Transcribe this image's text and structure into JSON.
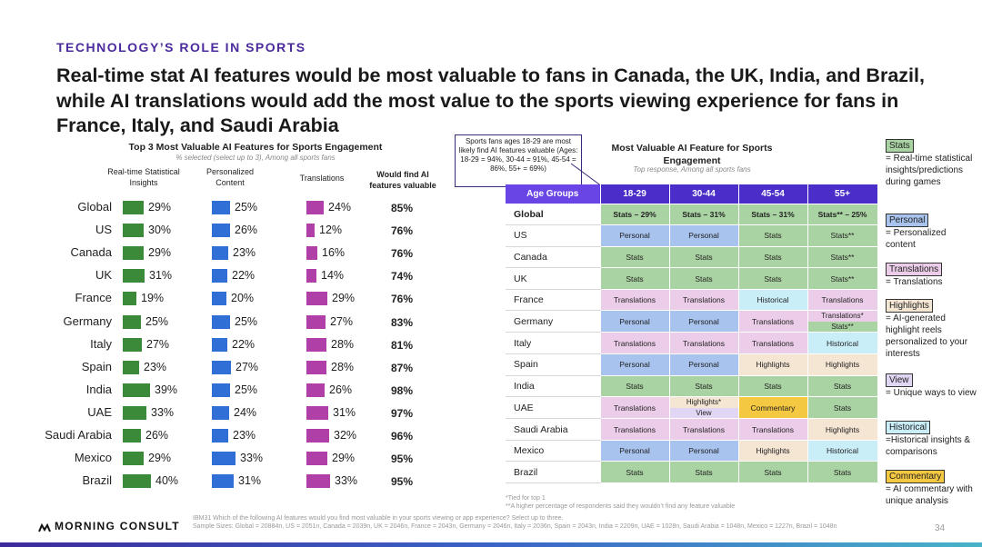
{
  "header": {
    "section_label": "TECHNOLOGY’S ROLE IN SPORTS",
    "headline": "Real-time stat AI features would be most valuable to fans in Canada, the UK, India, and Brazil, while AI translations would add the most value to the sports viewing experience for fans in France, Italy, and Saudi Arabia"
  },
  "colors": {
    "stats": "#3a8a3a",
    "personal": "#2f6fd6",
    "translations": "#b13fa8",
    "header_purple": "#4b2ec9",
    "accent": "#4b2a9e"
  },
  "chart_data": [
    {
      "type": "bar",
      "title": "Top 3 Most Valuable AI Features for Sports Engagement",
      "subtitle": "% selected (select up to 3), Among all sports fans",
      "categories": [
        "Global",
        "US",
        "Canada",
        "UK",
        "France",
        "Germany",
        "Italy",
        "Spain",
        "India",
        "UAE",
        "Saudi Arabia",
        "Mexico",
        "Brazil"
      ],
      "series": [
        {
          "name": "Real-time Statistical Insights",
          "values": [
            29,
            30,
            29,
            31,
            19,
            25,
            27,
            23,
            39,
            33,
            26,
            29,
            40
          ]
        },
        {
          "name": "Personalized Content",
          "values": [
            25,
            26,
            23,
            22,
            20,
            25,
            22,
            27,
            25,
            24,
            23,
            33,
            31
          ]
        },
        {
          "name": "Translations",
          "values": [
            24,
            12,
            16,
            14,
            29,
            27,
            28,
            28,
            26,
            31,
            32,
            29,
            33
          ]
        }
      ],
      "would_find_header": "Would find AI features valuable",
      "would_find": [
        "85%",
        "76%",
        "76%",
        "74%",
        "76%",
        "83%",
        "81%",
        "87%",
        "98%",
        "97%",
        "96%",
        "95%",
        "95%"
      ]
    },
    {
      "type": "table",
      "title": "Most Valuable AI Feature for Sports Engagement",
      "subtitle": "Top response, Among all sports fans",
      "columns": [
        "Age Groups",
        "18-29",
        "30-44",
        "45-54",
        "55+"
      ],
      "rows": [
        {
          "country": "Global",
          "cells": [
            {
              "t": "Stats – 29%",
              "c": "stats"
            },
            {
              "t": "Stats – 31%",
              "c": "stats"
            },
            {
              "t": "Stats – 31%",
              "c": "stats"
            },
            {
              "t": "Stats** – 25%",
              "c": "stats"
            }
          ]
        },
        {
          "country": "US",
          "cells": [
            {
              "t": "Personal",
              "c": "personal"
            },
            {
              "t": "Personal",
              "c": "personal"
            },
            {
              "t": "Stats",
              "c": "stats"
            },
            {
              "t": "Stats**",
              "c": "stats"
            }
          ]
        },
        {
          "country": "Canada",
          "cells": [
            {
              "t": "Stats",
              "c": "stats"
            },
            {
              "t": "Stats",
              "c": "stats"
            },
            {
              "t": "Stats",
              "c": "stats"
            },
            {
              "t": "Stats**",
              "c": "stats"
            }
          ]
        },
        {
          "country": "UK",
          "cells": [
            {
              "t": "Stats",
              "c": "stats"
            },
            {
              "t": "Stats",
              "c": "stats"
            },
            {
              "t": "Stats",
              "c": "stats"
            },
            {
              "t": "Stats**",
              "c": "stats"
            }
          ]
        },
        {
          "country": "France",
          "cells": [
            {
              "t": "Translations",
              "c": "translations"
            },
            {
              "t": "Translations",
              "c": "translations"
            },
            {
              "t": "Historical",
              "c": "historical"
            },
            {
              "t": "Translations",
              "c": "translations"
            }
          ]
        },
        {
          "country": "Germany",
          "cells": [
            {
              "t": "Personal",
              "c": "personal"
            },
            {
              "t": "Personal",
              "c": "personal"
            },
            {
              "t": "Translations",
              "c": "translations"
            },
            {
              "split": [
                {
                  "t": "Translations*",
                  "c": "translations"
                },
                {
                  "t": "Stats**",
                  "c": "stats"
                }
              ]
            }
          ]
        },
        {
          "country": "Italy",
          "cells": [
            {
              "t": "Translations",
              "c": "translations"
            },
            {
              "t": "Translations",
              "c": "translations"
            },
            {
              "t": "Translations",
              "c": "translations"
            },
            {
              "t": "Historical",
              "c": "historical"
            }
          ]
        },
        {
          "country": "Spain",
          "cells": [
            {
              "t": "Personal",
              "c": "personal"
            },
            {
              "t": "Personal",
              "c": "personal"
            },
            {
              "t": "Highlights",
              "c": "highlights"
            },
            {
              "t": "Highlights",
              "c": "highlights"
            }
          ]
        },
        {
          "country": "India",
          "cells": [
            {
              "t": "Stats",
              "c": "stats"
            },
            {
              "t": "Stats",
              "c": "stats"
            },
            {
              "t": "Stats",
              "c": "stats"
            },
            {
              "t": "Stats",
              "c": "stats"
            }
          ]
        },
        {
          "country": "UAE",
          "cells": [
            {
              "t": "Translations",
              "c": "translations"
            },
            {
              "split": [
                {
                  "t": "Highlights*",
                  "c": "highlights"
                },
                {
                  "t": "View",
                  "c": "view"
                }
              ]
            },
            {
              "t": "Commentary",
              "c": "commentary"
            },
            {
              "t": "Stats",
              "c": "stats"
            }
          ]
        },
        {
          "country": "Saudi Arabia",
          "cells": [
            {
              "t": "Translations",
              "c": "translations"
            },
            {
              "t": "Translations",
              "c": "translations"
            },
            {
              "t": "Translations",
              "c": "translations"
            },
            {
              "t": "Highlights",
              "c": "highlights"
            }
          ]
        },
        {
          "country": "Mexico",
          "cells": [
            {
              "t": "Personal",
              "c": "personal"
            },
            {
              "t": "Personal",
              "c": "personal"
            },
            {
              "t": "Highlights",
              "c": "highlights"
            },
            {
              "t": "Historical",
              "c": "historical"
            }
          ]
        },
        {
          "country": "Brazil",
          "cells": [
            {
              "t": "Stats",
              "c": "stats"
            },
            {
              "t": "Stats",
              "c": "stats"
            },
            {
              "t": "Stats",
              "c": "stats"
            },
            {
              "t": "Stats",
              "c": "stats"
            }
          ]
        }
      ]
    }
  ],
  "callout": "Sports fans ages 18-29 are most likely find AI features valuable (Ages: 18-29 = 94%, 30-44 = 91%, 45-54 = 86%, 55+ = 69%)",
  "cell_colors": {
    "stats": "#a9d3a2",
    "personal": "#a7c3ee",
    "translations": "#eccde9",
    "historical": "#c9eef8",
    "highlights": "#f5e6d3",
    "view": "#e2d6f5",
    "commentary": "#f5c842"
  },
  "legend": [
    {
      "key": "stats",
      "label": "Stats",
      "desc": "= Real-time statistical insights/predictions during games",
      "bg": "#a9d3a2"
    },
    {
      "key": "personal",
      "label": "Personal",
      "desc": "= Personalized content",
      "bg": "#a7c3ee"
    },
    {
      "key": "translations",
      "label": "Translations",
      "desc": "= Translations",
      "bg": "#eccde9"
    },
    {
      "key": "highlights",
      "label": "Highlights",
      "desc": "= AI-generated highlight reels personalized to your interests",
      "bg": "#f5e6d3"
    },
    {
      "key": "view",
      "label": "View",
      "desc": "= Unique ways to view",
      "bg": "#e2d6f5"
    },
    {
      "key": "historical",
      "label": "Historical",
      "desc": "=Historical insights & comparisons",
      "bg": "#c9eef8"
    },
    {
      "key": "commentary",
      "label": "Commentary",
      "desc": "= AI commentary with unique analysis",
      "bg": "#f5c842"
    }
  ],
  "footnotes": {
    "table_note_1": "*Tied for top 1",
    "table_note_2": "**A higher percentage of respondents said they wouldn’t find any feature valuable",
    "question": "IBM31 Which of the following AI features would you find most valuable in your sports viewing or app experience? Select up to three.",
    "sample": "Sample Sizes: Global = 20884n, US = 2051n, Canada = 2039n, UK = 2046n, France = 2043n, Germany = 2046n, Italy = 2036n, Spain = 2043n, India = 2209n, UAE = 1028n, Saudi Arabia = 1048n, Mexico = 1227n, Brazil = 1048n"
  },
  "logo": "MORNING CONSULT",
  "page_number": "34"
}
